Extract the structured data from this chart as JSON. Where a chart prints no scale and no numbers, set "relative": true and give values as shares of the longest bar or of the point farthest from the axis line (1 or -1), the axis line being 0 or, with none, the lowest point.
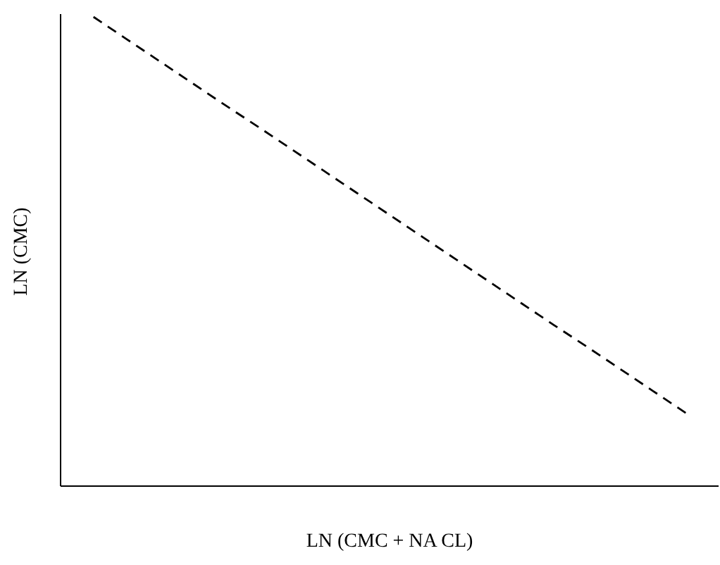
{
  "chart_data": {
    "type": "line",
    "xlabel": "LN (CMC + NA CL)",
    "ylabel": "LN (CMC)",
    "relative": true,
    "categories": [
      null,
      null,
      null,
      null,
      null,
      null,
      null,
      null,
      null,
      null,
      null,
      null,
      null,
      null,
      null,
      null,
      null,
      null,
      null,
      null,
      null
    ],
    "series": [
      {
        "color": "#000000",
        "values": [
          null,
          1,
          0.953,
          0.906,
          0.859,
          0.812,
          0.766,
          0.719,
          0.672,
          0.625,
          0.578,
          0.531,
          0.484,
          0.437,
          0.39,
          0.343,
          0.297,
          0.25,
          0.203,
          0.156,
          null
        ]
      }
    ],
    "line_style": "dashed",
    "marker": "none"
  }
}
